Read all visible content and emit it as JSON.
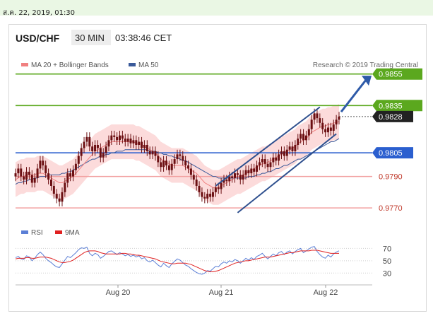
{
  "timestamp": "ส.ค. 22, 2019, 01:30",
  "header": {
    "symbol": "USD/CHF",
    "interval": "30 MIN",
    "time": "03:38:46 CET"
  },
  "legend": {
    "ma20": "MA 20 + Bollinger Bands",
    "ma50": "MA 50",
    "credit": "Research © 2019 Trading Central"
  },
  "oscillator_legend": {
    "rsi": "RSI",
    "ma9": "9MA"
  },
  "colors": {
    "green_level": "#5ba81e",
    "blue_level": "#2b5fcf",
    "red_level": "#f2a0a0",
    "band_fill": "#fbd5d5",
    "ma20": "#f08080",
    "ma50": "#3a5a9a",
    "channel": "#2e4f8e",
    "arrow": "#2e5aa8",
    "rsi": "#5b7fd6",
    "rsi_ma": "#e02020",
    "candle": "#6b0f12"
  },
  "chart_data": [
    {
      "type": "candlestick",
      "title": "USD/CHF",
      "x_labels": [
        "Aug 20",
        "Aug 21",
        "Aug 22"
      ],
      "ylim": [
        0.9762,
        0.9858
      ],
      "levels": [
        {
          "value": 0.9855,
          "label": "0.9855",
          "kind": "resistance"
        },
        {
          "value": 0.9835,
          "label": "0.9835",
          "kind": "resistance"
        },
        {
          "value": 0.9828,
          "label": "0.9828",
          "kind": "last-price"
        },
        {
          "value": 0.9805,
          "label": "0.9805",
          "kind": "pivot"
        },
        {
          "value": 0.979,
          "label": "0.9790",
          "kind": "support"
        },
        {
          "value": 0.977,
          "label": "0.9770",
          "kind": "support"
        }
      ],
      "ohlc_close": [
        0.9792,
        0.9795,
        0.979,
        0.9788,
        0.9793,
        0.9791,
        0.9786,
        0.9789,
        0.9795,
        0.98,
        0.9797,
        0.9792,
        0.9788,
        0.9784,
        0.9779,
        0.9776,
        0.9774,
        0.978,
        0.9786,
        0.9792,
        0.979,
        0.9794,
        0.9798,
        0.9803,
        0.9808,
        0.9812,
        0.9815,
        0.9809,
        0.9806,
        0.981,
        0.9808,
        0.9802,
        0.9805,
        0.9809,
        0.9813,
        0.9816,
        0.9815,
        0.9813,
        0.9816,
        0.9814,
        0.9812,
        0.9814,
        0.9811,
        0.9813,
        0.981,
        0.9812,
        0.9808,
        0.981,
        0.9806,
        0.9804,
        0.9806,
        0.9803,
        0.9799,
        0.9796,
        0.98,
        0.9797,
        0.9794,
        0.9798,
        0.9801,
        0.9804,
        0.9803,
        0.98,
        0.9797,
        0.9795,
        0.9791,
        0.9788,
        0.9784,
        0.978,
        0.9777,
        0.9776,
        0.9779,
        0.9777,
        0.978,
        0.9783,
        0.9782,
        0.9786,
        0.9788,
        0.9787,
        0.979,
        0.9789,
        0.9792,
        0.9791,
        0.9788,
        0.9791,
        0.9794,
        0.9792,
        0.9795,
        0.9793,
        0.9797,
        0.9799,
        0.9801,
        0.9798,
        0.9796,
        0.9799,
        0.9802,
        0.98,
        0.9804,
        0.9806,
        0.9803,
        0.9807,
        0.9809,
        0.9806,
        0.981,
        0.9814,
        0.9817,
        0.9813,
        0.9816,
        0.982,
        0.9826,
        0.983,
        0.9827,
        0.9824,
        0.982,
        0.9818,
        0.9821,
        0.9819,
        0.9823,
        0.9826,
        0.9828
      ],
      "ma20": [
        0.9788,
        0.9789,
        0.979,
        0.979,
        0.9791,
        0.9791,
        0.9791,
        0.9791,
        0.9792,
        0.9792,
        0.9792,
        0.9791,
        0.979,
        0.9789,
        0.9788,
        0.9787,
        0.9786,
        0.9786,
        0.9787,
        0.9788,
        0.9789,
        0.979,
        0.9792,
        0.9794,
        0.9796,
        0.9798,
        0.98,
        0.9802,
        0.9804,
        0.9806,
        0.9807,
        0.9808,
        0.9809,
        0.981,
        0.9811,
        0.9812,
        0.9812,
        0.9812,
        0.9812,
        0.9812,
        0.9812,
        0.9812,
        0.9812,
        0.9812,
        0.9811,
        0.9811,
        0.981,
        0.9809,
        0.9808,
        0.9807,
        0.9806,
        0.9805,
        0.9803,
        0.9801,
        0.98,
        0.9799,
        0.9798,
        0.9797,
        0.9797,
        0.9797,
        0.9797,
        0.9797,
        0.9796,
        0.9795,
        0.9794,
        0.9793,
        0.9792,
        0.979,
        0.9788,
        0.9786,
        0.9785,
        0.9784,
        0.9783,
        0.9783,
        0.9783,
        0.9784,
        0.9785,
        0.9786,
        0.9787,
        0.9788,
        0.9789,
        0.979,
        0.979,
        0.9791,
        0.9792,
        0.9793,
        0.9794,
        0.9795,
        0.9796,
        0.9797,
        0.9798,
        0.9798,
        0.9799,
        0.98,
        0.9801,
        0.9802,
        0.9803,
        0.9804,
        0.9805,
        0.9806,
        0.9807,
        0.9808,
        0.9809,
        0.9811,
        0.9812,
        0.9813,
        0.9814,
        0.9816,
        0.9818,
        0.9819,
        0.982,
        0.9821,
        0.9822,
        0.9822,
        0.9823,
        0.9823,
        0.9824,
        0.9824,
        0.9825
      ],
      "ma50": [
        0.9785,
        0.9786,
        0.9786,
        0.9787,
        0.9787,
        0.9788,
        0.9788,
        0.9789,
        0.9789,
        0.979,
        0.979,
        0.979,
        0.9791,
        0.9791,
        0.9791,
        0.9791,
        0.9791,
        0.9792,
        0.9792,
        0.9793,
        0.9793,
        0.9794,
        0.9795,
        0.9796,
        0.9797,
        0.9798,
        0.9799,
        0.98,
        0.9801,
        0.9801,
        0.9802,
        0.9803,
        0.9803,
        0.9804,
        0.9804,
        0.9805,
        0.9805,
        0.9806,
        0.9806,
        0.9806,
        0.9807,
        0.9807,
        0.9807,
        0.9807,
        0.9807,
        0.9807,
        0.9807,
        0.9807,
        0.9807,
        0.9806,
        0.9806,
        0.9806,
        0.9805,
        0.9805,
        0.9804,
        0.9804,
        0.9803,
        0.9803,
        0.9802,
        0.9802,
        0.9801,
        0.98,
        0.98,
        0.9799,
        0.9798,
        0.9797,
        0.9796,
        0.9795,
        0.9794,
        0.9793,
        0.9792,
        0.9791,
        0.979,
        0.979,
        0.9789,
        0.9789,
        0.9789,
        0.9789,
        0.9789,
        0.9789,
        0.9789,
        0.9789,
        0.9789,
        0.9789,
        0.9789,
        0.979,
        0.979,
        0.979,
        0.9791,
        0.9791,
        0.9792,
        0.9792,
        0.9793,
        0.9793,
        0.9794,
        0.9795,
        0.9795,
        0.9796,
        0.9797,
        0.9797,
        0.9798,
        0.9799,
        0.98,
        0.9801,
        0.9801,
        0.9802,
        0.9803,
        0.9804,
        0.9805,
        0.9806,
        0.9807,
        0.9808,
        0.9809,
        0.981,
        0.9811,
        0.9812,
        0.9812,
        0.9813,
        0.9814
      ]
    },
    {
      "type": "line",
      "series": [
        {
          "name": "RSI"
        },
        {
          "name": "9MA"
        }
      ],
      "ylim": [
        20,
        75
      ],
      "yticks": [
        "70",
        "50",
        "30"
      ],
      "rsi": [
        55,
        57,
        53,
        52,
        58,
        56,
        50,
        54,
        60,
        64,
        60,
        54,
        50,
        47,
        43,
        40,
        39,
        45,
        51,
        57,
        55,
        59,
        63,
        68,
        71,
        70,
        72,
        62,
        58,
        62,
        60,
        54,
        57,
        61,
        65,
        66,
        63,
        60,
        63,
        61,
        58,
        60,
        57,
        59,
        56,
        58,
        53,
        55,
        50,
        48,
        51,
        47,
        43,
        40,
        46,
        42,
        39,
        45,
        49,
        53,
        51,
        47,
        43,
        41,
        37,
        34,
        31,
        29,
        28,
        30,
        34,
        33,
        37,
        41,
        40,
        45,
        48,
        46,
        50,
        48,
        52,
        50,
        46,
        50,
        54,
        51,
        55,
        52,
        57,
        59,
        62,
        57,
        53,
        57,
        61,
        58,
        63,
        65,
        60,
        64,
        66,
        61,
        65,
        68,
        70,
        63,
        66,
        69,
        72,
        73,
        65,
        60,
        56,
        54,
        59,
        56,
        61,
        64,
        66
      ],
      "ma9": [
        53,
        54,
        54,
        54,
        55,
        55,
        54,
        54,
        55,
        56,
        56,
        56,
        55,
        54,
        52,
        50,
        48,
        47,
        47,
        48,
        49,
        51,
        54,
        57,
        60,
        63,
        65,
        66,
        66,
        66,
        65,
        63,
        62,
        61,
        61,
        61,
        61,
        61,
        61,
        62,
        62,
        61,
        61,
        60,
        59,
        59,
        58,
        57,
        56,
        55,
        54,
        53,
        51,
        49,
        48,
        47,
        46,
        45,
        45,
        46,
        46,
        46,
        46,
        45,
        44,
        42,
        40,
        38,
        36,
        34,
        33,
        32,
        32,
        33,
        34,
        36,
        38,
        40,
        42,
        44,
        46,
        47,
        48,
        49,
        50,
        50,
        51,
        52,
        53,
        54,
        55,
        56,
        56,
        56,
        57,
        58,
        59,
        60,
        61,
        62,
        63,
        63,
        64,
        65,
        66,
        66,
        66,
        66,
        67,
        67,
        67,
        66,
        65,
        64,
        63,
        62,
        62,
        62,
        62
      ]
    }
  ]
}
